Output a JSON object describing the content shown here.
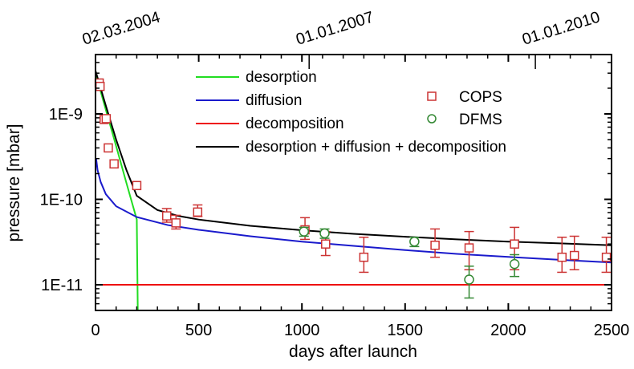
{
  "chart_data": {
    "type": "scatter",
    "title": "",
    "xlabel": "days after launch",
    "ylabel": "pressure [mbar]",
    "xlim": [
      0,
      2500
    ],
    "ylim": [
      5e-12,
      5e-09
    ],
    "yscale": "log",
    "x_ticks": [
      0,
      500,
      1000,
      1500,
      2000,
      2500
    ],
    "x_tick_labels": [
      "0",
      "500",
      "1000",
      "1500",
      "2000",
      "2500"
    ],
    "y_ticks": [
      1e-09,
      1e-10,
      1e-11
    ],
    "y_tick_labels": [
      "1E-9",
      "1E-10",
      "1E-11"
    ],
    "top_axis_dates": [
      {
        "label": "02.03.2004",
        "day": 0
      },
      {
        "label": "01.01.2007",
        "day": 1035
      },
      {
        "label": "01.01.2010",
        "day": 2131
      }
    ],
    "grid": false,
    "legend_lines_position": "top-center",
    "legend_markers_position": "top-right",
    "series": [
      {
        "name": "desorption",
        "kind": "line",
        "color": "#22dd22",
        "x": [
          0,
          50,
          100,
          150,
          200
        ],
        "y": [
          3e-09,
          1.12e-09,
          4.2e-10,
          1.55e-10,
          5.8e-11
        ],
        "note": "continues below axis to ~day 205"
      },
      {
        "name": "diffusion",
        "kind": "line",
        "color": "#1a1acc",
        "x": [
          3,
          10,
          25,
          50,
          100,
          200,
          350,
          500,
          750,
          1000,
          1250,
          1500,
          1750,
          2000,
          2250,
          2500
        ],
        "y": [
          3e-10,
          2.2e-10,
          1.6e-10,
          1.15e-10,
          8.3e-11,
          6.2e-11,
          5e-11,
          4.4e-11,
          3.7e-11,
          3.2e-11,
          2.85e-11,
          2.55e-11,
          2.3e-11,
          2.12e-11,
          1.96e-11,
          1.82e-11
        ]
      },
      {
        "name": "decomposition",
        "kind": "line",
        "color": "#ee1111",
        "x": [
          0,
          2500
        ],
        "y": [
          1e-11,
          1e-11
        ]
      },
      {
        "name": "desorption + diffusion + decomposition",
        "kind": "line",
        "color": "#000000",
        "x": [
          0,
          25,
          50,
          75,
          100,
          150,
          200,
          300,
          400,
          500,
          750,
          1000,
          1250,
          1500,
          1750,
          2000,
          2250,
          2500
        ],
        "y": [
          3.2e-09,
          2e-09,
          1.25e-09,
          7.9e-10,
          5e-10,
          2.2e-10,
          1.1e-10,
          7.5e-11,
          6.4e-11,
          5.8e-11,
          4.9e-11,
          4.35e-11,
          3.95e-11,
          3.65e-11,
          3.4e-11,
          3.2e-11,
          3.05e-11,
          2.9e-11
        ]
      },
      {
        "name": "COPS",
        "kind": "marker",
        "marker": "square",
        "color": "#cc3333",
        "x": [
          18,
          22,
          42,
          52,
          62,
          90,
          200,
          345,
          390,
          495,
          1015,
          1115,
          1300,
          1645,
          1810,
          2030,
          2260,
          2320,
          2475
        ],
        "y": [
          2.3e-09,
          2.1e-09,
          8.6e-10,
          8.8e-10,
          4e-10,
          2.6e-10,
          1.45e-10,
          6.4e-11,
          5.3e-11,
          7.1e-11,
          4.4e-11,
          3e-11,
          2.1e-11,
          2.9e-11,
          2.7e-11,
          3e-11,
          2.1e-11,
          2.2e-11,
          2.1e-11
        ],
        "err_low": [
          null,
          null,
          null,
          null,
          null,
          null,
          null,
          1e-11,
          8e-12,
          8e-12,
          1e-11,
          8e-12,
          7e-12,
          8e-12,
          1.2e-11,
          1.5e-11,
          7e-12,
          7e-12,
          7e-12
        ],
        "err_high": [
          null,
          null,
          null,
          null,
          null,
          null,
          null,
          1.4e-11,
          1.2e-11,
          1.5e-11,
          1.7e-11,
          1.2e-11,
          1.5e-11,
          1.6e-11,
          1.5e-11,
          1.7e-11,
          1.5e-11,
          1.5e-11,
          1.5e-11
        ]
      },
      {
        "name": "DFMS",
        "kind": "marker",
        "marker": "circle",
        "color": "#338833",
        "x": [
          1010,
          1110,
          1545,
          1810,
          2030
        ],
        "y": [
          4.2e-11,
          4e-11,
          3.2e-11,
          1.15e-11,
          1.75e-11
        ],
        "err_low": [
          5e-12,
          5e-12,
          4e-12,
          4.5e-12,
          5e-12
        ],
        "err_high": [
          5e-12,
          5e-12,
          4e-12,
          5e-12,
          5e-12
        ]
      }
    ],
    "legend": {
      "lines": [
        "desorption",
        "diffusion",
        "decomposition",
        "desorption + diffusion + decomposition"
      ],
      "markers": [
        "COPS",
        "DFMS"
      ]
    }
  }
}
